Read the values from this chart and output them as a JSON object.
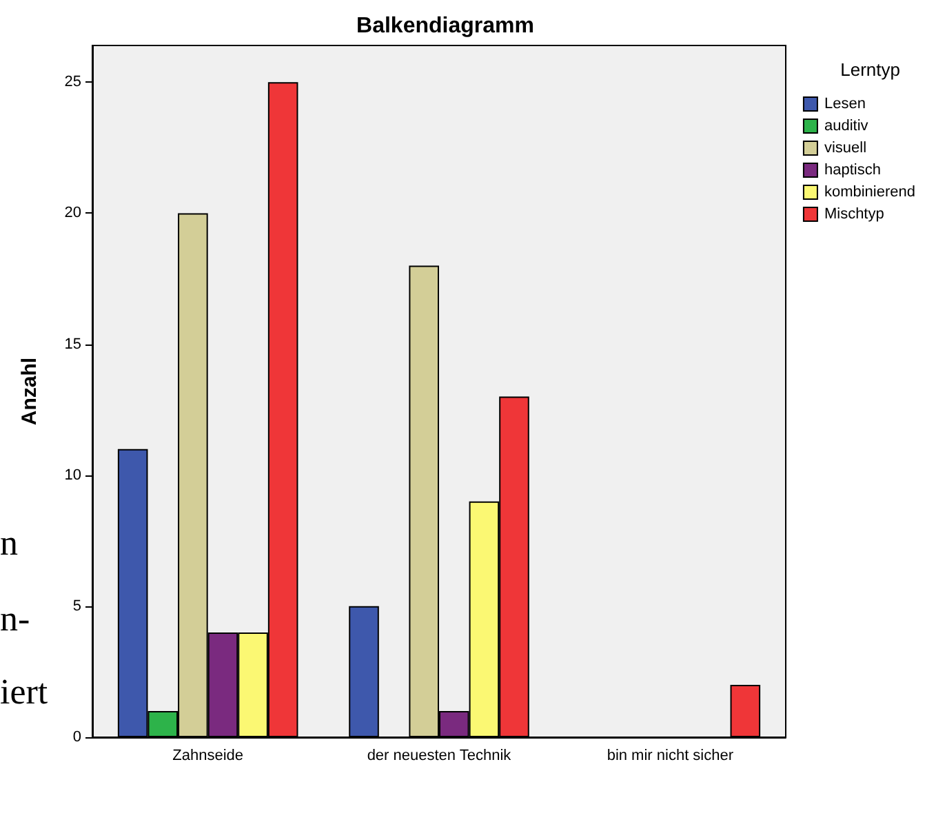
{
  "chart_data": {
    "type": "bar",
    "title": "Balkendiagramm",
    "ylabel": "Anzahl",
    "legend_title": "Lerntyp",
    "categories": [
      "Zahnseide",
      "der neuesten Technik",
      "bin mir nicht sicher"
    ],
    "series": [
      {
        "name": "Lesen",
        "color": "#3e58ac",
        "values": [
          11,
          5,
          0
        ]
      },
      {
        "name": "auditiv",
        "color": "#2db34a",
        "values": [
          1,
          0,
          0
        ]
      },
      {
        "name": "visuell",
        "color": "#d3ce97",
        "values": [
          20,
          18,
          0
        ]
      },
      {
        "name": "haptisch",
        "color": "#7a2a7f",
        "values": [
          4,
          1,
          0
        ]
      },
      {
        "name": "kombinierend",
        "color": "#fbf873",
        "values": [
          4,
          9,
          0
        ]
      },
      {
        "name": "Mischtyp",
        "color": "#ef3638",
        "values": [
          25,
          13,
          2
        ]
      }
    ],
    "ylim": [
      0,
      26.4
    ],
    "yticks": [
      0,
      5,
      10,
      15,
      20,
      25
    ],
    "grid": false,
    "legend": "right",
    "annotations": [
      "n",
      "n-",
      "iert"
    ]
  }
}
